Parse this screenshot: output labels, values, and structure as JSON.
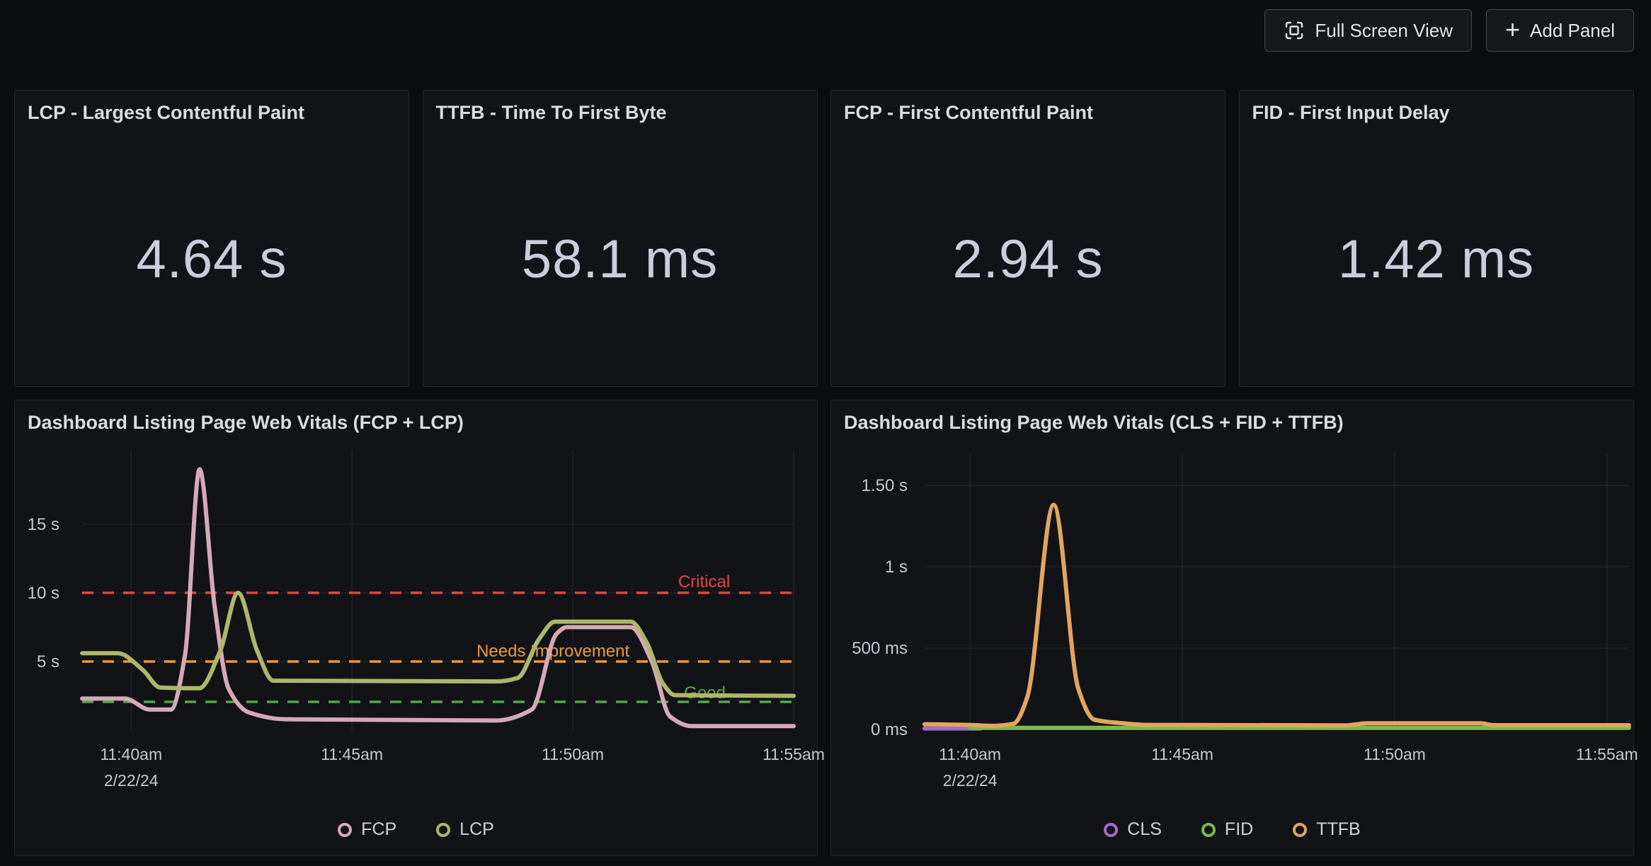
{
  "toolbar": {
    "full_screen_label": "Full Screen View",
    "add_panel_label": "Add Panel",
    "plus_icon": "+"
  },
  "stat_panels": [
    {
      "title": "LCP - Largest Contentful Paint",
      "value": "4.64 s"
    },
    {
      "title": "TTFB - Time To First Byte",
      "value": "58.1 ms"
    },
    {
      "title": "FCP - First Contentful Paint",
      "value": "2.94 s"
    },
    {
      "title": "FID - First Input Delay",
      "value": "1.42 ms"
    }
  ],
  "style": {
    "grid_color": "rgba(204,204,220,0.08)",
    "tick_color": "#c7c8d1",
    "value_color": "#ccccdc"
  },
  "chart_data": [
    {
      "type": "line",
      "title": "Dashboard Listing Page Web Vitals (FCP + LCP)",
      "x_unit": "minutes relative to 11:40am, 2/22/24",
      "x_range": [
        -1.11,
        15.0
      ],
      "ylim": [
        0,
        20.4
      ],
      "y_unit": "s",
      "grid": true,
      "legend_position": "bottom-center",
      "y_ticks": [
        {
          "v": 15,
          "label": "15 s"
        },
        {
          "v": 10,
          "label": "10 s"
        },
        {
          "v": 5,
          "label": "5 s"
        }
      ],
      "x_ticks": [
        {
          "t": 0,
          "label": "11:40am",
          "sub": "2/22/24"
        },
        {
          "t": 5,
          "label": "11:45am"
        },
        {
          "t": 10,
          "label": "11:50am"
        },
        {
          "t": 15,
          "label": "11:55am"
        }
      ],
      "thresholds": [
        {
          "label": "Critical",
          "value": 10,
          "color": "#e8463e",
          "anchor": "end",
          "label_t": 13.56,
          "dy": -8
        },
        {
          "label": "Needs Improvement",
          "value": 5,
          "color": "#ec9a3a",
          "anchor": "start",
          "label_t": 7.82,
          "dy": -7
        },
        {
          "label": "Good",
          "value": 2.06,
          "color": "#56a64b",
          "anchor": "start",
          "label_t": 12.52,
          "dy": -5
        }
      ],
      "series": [
        {
          "name": "FCP",
          "color": "#d6a9b6",
          "points": [
            [
              -1.11,
              2.3
            ],
            [
              -0.14,
              2.3
            ],
            [
              0.42,
              1.5
            ],
            [
              0.9,
              1.5
            ],
            [
              1.22,
              5.5
            ],
            [
              1.55,
              19.0
            ],
            [
              1.89,
              9.0
            ],
            [
              2.21,
              3.0
            ],
            [
              2.66,
              1.3
            ],
            [
              3.46,
              0.8
            ],
            [
              8.27,
              0.7
            ],
            [
              9.07,
              1.5
            ],
            [
              9.63,
              7.0
            ],
            [
              9.87,
              7.5
            ],
            [
              11.31,
              7.5
            ],
            [
              11.79,
              5.0
            ],
            [
              12.2,
              1.0
            ],
            [
              12.68,
              0.3
            ],
            [
              15.0,
              0.3
            ]
          ]
        },
        {
          "name": "LCP",
          "color": "#aeb76a",
          "points": [
            [
              -1.11,
              5.6
            ],
            [
              -0.3,
              5.6
            ],
            [
              0.26,
              4.4
            ],
            [
              0.66,
              3.1
            ],
            [
              1.54,
              3.05
            ],
            [
              2.02,
              5.8
            ],
            [
              2.42,
              10.0
            ],
            [
              2.85,
              5.8
            ],
            [
              3.22,
              3.6
            ],
            [
              8.27,
              3.55
            ],
            [
              8.75,
              3.8
            ],
            [
              9.23,
              6.6
            ],
            [
              9.6,
              7.9
            ],
            [
              11.31,
              7.9
            ],
            [
              11.67,
              6.4
            ],
            [
              12.04,
              3.4
            ],
            [
              12.31,
              2.55
            ],
            [
              15.0,
              2.5
            ]
          ]
        }
      ]
    },
    {
      "type": "line",
      "title": "Dashboard Listing Page Web Vitals (CLS + FID + TTFB)",
      "x_unit": "minutes relative to 11:40am, 2/22/24",
      "x_range": [
        -1.07,
        15.52
      ],
      "ylim": [
        0,
        1695
      ],
      "y_unit": "ms",
      "grid": true,
      "legend_position": "bottom-center",
      "y_ticks": [
        {
          "v": 1500,
          "label": "1.50 s"
        },
        {
          "v": 1000,
          "label": "1 s"
        },
        {
          "v": 500,
          "label": "500 ms"
        },
        {
          "v": 0,
          "label": "0 ms"
        }
      ],
      "x_ticks": [
        {
          "t": 0,
          "label": "11:40am",
          "sub": "2/22/24"
        },
        {
          "t": 5,
          "label": "11:45am"
        },
        {
          "t": 10,
          "label": "11:50am"
        },
        {
          "t": 15,
          "label": "11:55am"
        }
      ],
      "thresholds": [],
      "series": [
        {
          "name": "CLS",
          "color": "#a16cc9",
          "points": [
            [
              -1.07,
              6
            ],
            [
              0.25,
              6
            ]
          ]
        },
        {
          "name": "FID",
          "color": "#7aba4d",
          "points": [
            [
              0.0,
              10
            ],
            [
              15.52,
              10
            ]
          ]
        },
        {
          "name": "TTFB",
          "color": "#e2a55e",
          "points": [
            [
              -1.07,
              32
            ],
            [
              0.0,
              28
            ],
            [
              0.52,
              22
            ],
            [
              1.02,
              35
            ],
            [
              1.35,
              200
            ],
            [
              1.97,
              1380
            ],
            [
              2.55,
              250
            ],
            [
              2.93,
              60
            ],
            [
              3.52,
              40
            ],
            [
              4.18,
              28
            ],
            [
              8.85,
              25
            ],
            [
              9.35,
              38
            ],
            [
              12.02,
              38
            ],
            [
              12.35,
              26
            ],
            [
              15.52,
              26
            ]
          ]
        }
      ]
    }
  ]
}
